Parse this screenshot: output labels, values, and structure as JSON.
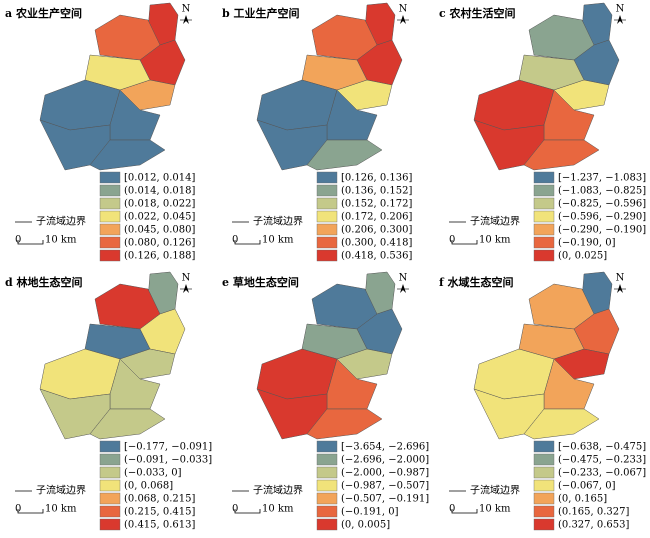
{
  "panels": [
    {
      "title": "a 农业生产空间",
      "legend": [
        "[0.012, 0.014]",
        "(0.014, 0.018]",
        "(0.018, 0.022]",
        "(0.022, 0.045]",
        "(0.045, 0.080]",
        "(0.080, 0.126]",
        "(0.126, 0.188]"
      ]
    },
    {
      "title": "b 工业生产空间",
      "legend": [
        "[0.126, 0.136]",
        "(0.136, 0.152]",
        "(0.152, 0.172]",
        "(0.172, 0.206]",
        "(0.206, 0.300]",
        "(0.300, 0.418]",
        "(0.418, 0.536]"
      ]
    },
    {
      "title": "c 农村生活空间",
      "legend": [
        "[−1.237, −1.083]",
        "(−1.083, −0.825]",
        "(−0.825, −0.596]",
        "(−0.596, −0.290]",
        "(−0.290, −0.190]",
        "(−0.190, 0]",
        "(0, 0.025]"
      ]
    },
    {
      "title": "d 林地生态空间",
      "legend": [
        "[−0.177, −0.091]",
        "(−0.091, −0.033]",
        "(−0.033, 0]",
        "(0, 0.068]",
        "(0.068, 0.215]",
        "(0.215, 0.415]",
        "(0.415, 0.613]"
      ]
    },
    {
      "title": "e 草地生态空间",
      "legend": [
        "[−3.654, −2.696]",
        "(−2.696, −2.000]",
        "(−2.000, −0.987]",
        "(−0.987, −0.507]",
        "(−0.507, −0.191]",
        "(−0.191, 0]",
        "(0, 0.005]"
      ]
    },
    {
      "title": "f 水域生态空间",
      "legend": [
        "[−0.638, −0.475]",
        "(−0.475, −0.233]",
        "(−0.233, −0.067]",
        "(−0.067, 0]",
        "(0, 0.165]",
        "(0.165, 0.327]",
        "(0.327, 0.653]"
      ]
    }
  ],
  "colors": [
    "#4f7a9a",
    "#8aa490",
    "#c4c98a",
    "#f1e37a",
    "#f2a45a",
    "#e8673f",
    "#d9392e"
  ],
  "boundary_label": "子流域边界",
  "scale": {
    "start": "0",
    "end": "10 km"
  },
  "north": "N"
}
